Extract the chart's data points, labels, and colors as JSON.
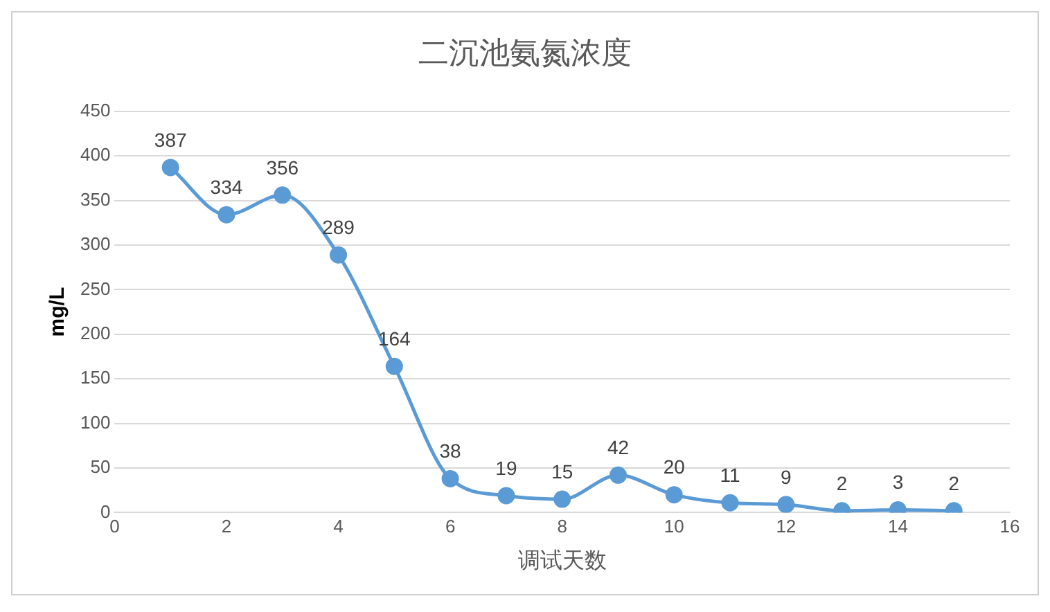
{
  "chart_data": {
    "type": "line",
    "title": "二沉池氨氮浓度",
    "xlabel": "调试天数",
    "ylabel": "mg/L",
    "x": [
      1,
      2,
      3,
      4,
      5,
      6,
      7,
      8,
      9,
      10,
      11,
      12,
      13,
      14,
      15
    ],
    "series": [
      {
        "color": "#5b9bd5",
        "values": [
          387,
          334,
          356,
          289,
          164,
          38,
          19,
          15,
          42,
          20,
          11,
          9,
          2,
          3,
          2
        ]
      }
    ],
    "xlim": [
      0,
      16
    ],
    "xticks": [
      0,
      2,
      4,
      6,
      8,
      10,
      12,
      14,
      16
    ],
    "ylim": [
      0,
      450
    ],
    "yticks": [
      0,
      50,
      100,
      150,
      200,
      250,
      300,
      350,
      400,
      450
    ],
    "grid": "y",
    "legend": false,
    "marker": "circle",
    "line_style": "solid",
    "data_labels": true
  }
}
